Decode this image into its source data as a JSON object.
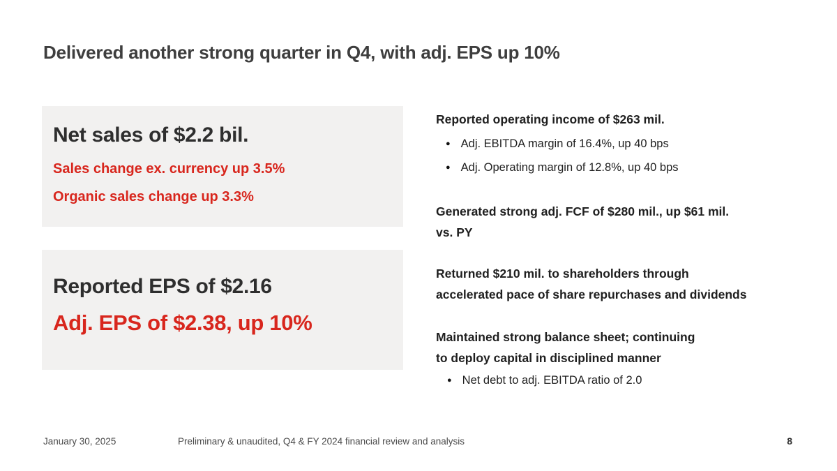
{
  "slide": {
    "title": "Delivered another strong quarter in Q4, with adj. EPS up 10%"
  },
  "cards": {
    "net_sales": {
      "headline": "Net sales of $2.2 bil.",
      "sub_lines": [
        "Sales change ex. currency up 3.5%",
        "Organic sales change up 3.3%"
      ]
    },
    "eps": {
      "reported": "Reported EPS of $2.16",
      "adjusted": "Adj. EPS of $2.38, up 10%"
    }
  },
  "highlights": {
    "operating_income": {
      "heading": "Reported operating income of $263 mil.",
      "bullets": [
        "Adj. EBITDA margin of 16.4%, up 40 bps",
        "Adj. Operating margin of 12.8%, up 40 bps"
      ]
    },
    "fcf": {
      "lines": [
        "Generated strong adj. FCF of $280 mil., up $61 mil.",
        "vs. PY"
      ]
    },
    "shareholder_returns": {
      "lines": [
        "Returned $210 mil. to shareholders through",
        "accelerated pace of share repurchases and dividends"
      ]
    },
    "balance_sheet": {
      "lines": [
        "Maintained strong balance sheet; continuing",
        "to deploy capital in disciplined manner"
      ],
      "bullets": [
        "Net debt to adj. EBITDA ratio of 2.0"
      ]
    }
  },
  "footer": {
    "date": "January 30, 2025",
    "note": "Preliminary & unaudited, Q4 & FY 2024 financial review and analysis",
    "page": "8"
  },
  "icons": {
    "bullet": "●"
  },
  "colors": {
    "accent_red": "#d8261d",
    "card_bg": "#f2f1f0",
    "title_text": "#3e3e3e",
    "body_text": "#1f1f1f"
  }
}
